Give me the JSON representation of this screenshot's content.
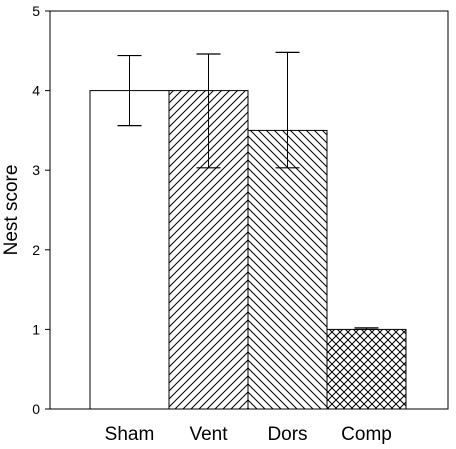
{
  "chart_data": {
    "type": "bar",
    "title": "",
    "xlabel": "",
    "ylabel": "Nest score",
    "ylim": [
      0,
      5
    ],
    "yticks": [
      0,
      1,
      2,
      3,
      4,
      5
    ],
    "ytick_labels": [
      "0",
      "1",
      "2",
      "3",
      "4",
      "5"
    ],
    "categories": [
      "Sham",
      "Vent",
      "Dors",
      "Comp"
    ],
    "values": [
      4.0,
      4.0,
      3.5,
      1.0
    ],
    "error_upper": [
      4.44,
      4.46,
      4.48,
      1.02
    ],
    "error_lower": [
      3.56,
      3.03,
      3.03,
      1.0
    ],
    "fills": [
      "none",
      "diagonal-forward",
      "diagonal-back",
      "crosshatch"
    ],
    "grid": false,
    "legend": "none"
  }
}
